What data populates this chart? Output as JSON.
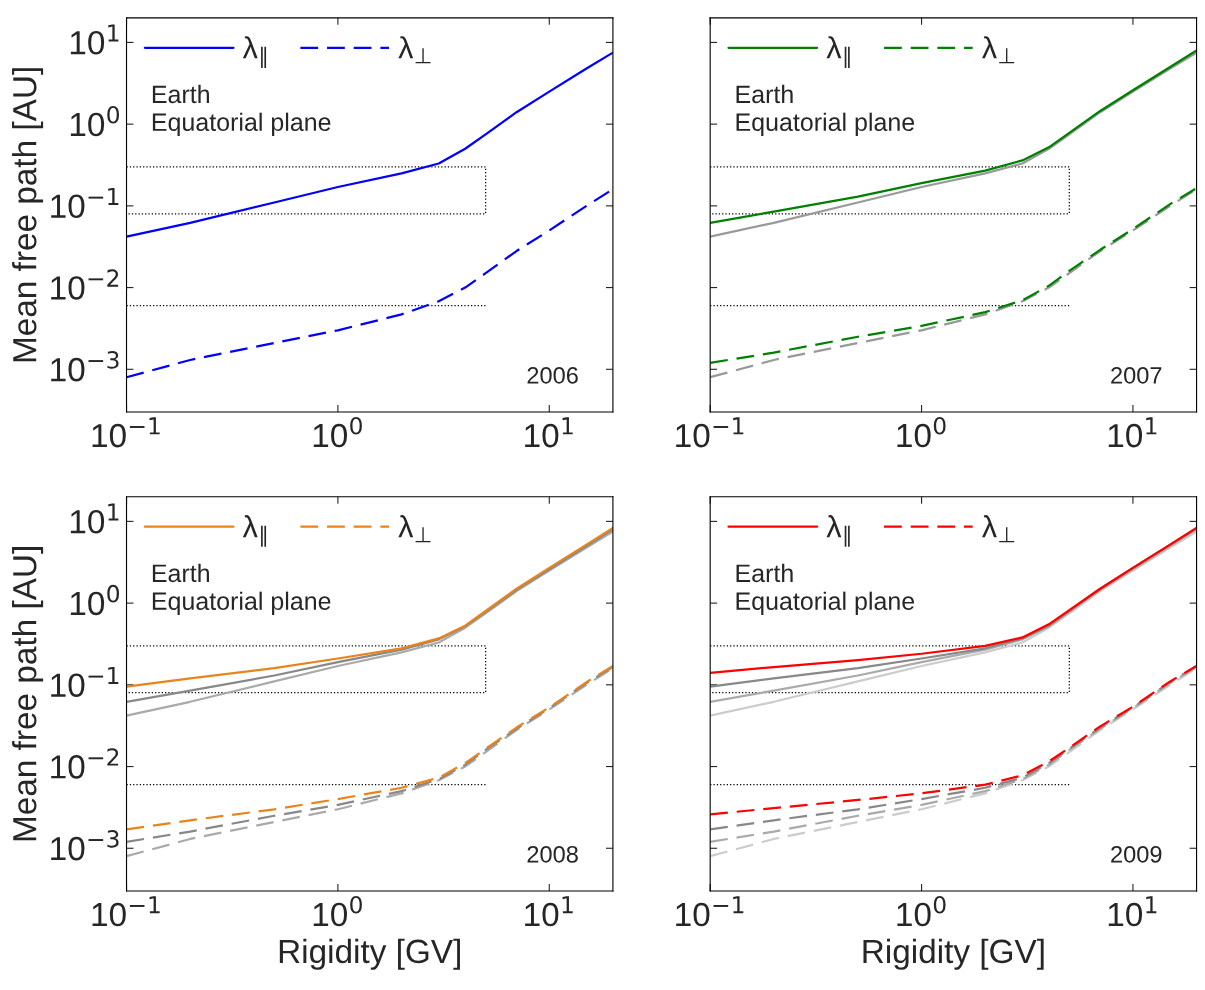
{
  "chart_data": [
    {
      "type": "line",
      "ylabel": "Mean free path [AU]",
      "xlim": [
        0.1,
        20
      ],
      "ylim": [
        0.0003,
        20
      ],
      "log": "xy",
      "grid": false,
      "legend": "top left",
      "xticks": [
        {
          "value": 0.1,
          "label": "10$^{−1}$"
        },
        {
          "value": 1,
          "label": "10$^{0}$"
        },
        {
          "value": 10,
          "label": "10$^{1}$"
        }
      ],
      "yticks": [
        {
          "value": 0.001,
          "label": "10$^{−3}$"
        },
        {
          "value": 0.01,
          "label": "10$^{−2}$"
        },
        {
          "value": 0.1,
          "label": "10$^{−1}$"
        },
        {
          "value": 1,
          "label": "10$^{0}$"
        },
        {
          "value": 10,
          "label": "10$^{1}$"
        }
      ],
      "annotations": [
        "Earth\nEquatorial plane",
        "2006"
      ],
      "series": [
        {
          "type": "line",
          "color": "#000000",
          "line_style": "dotted",
          "x": [
            0.1,
            5,
            5,
            0.1
          ],
          "values": [
            0.3,
            0.3,
            0.08,
            0.08
          ]
        },
        {
          "type": "line",
          "color": "#000000",
          "line_style": "dotted",
          "x": [
            0.1,
            5
          ],
          "values": [
            0.006,
            0.006
          ]
        },
        {
          "type": "line",
          "name": "λ$_{∥}$",
          "color": "#0000ff",
          "line_style": "solid",
          "x": [
            0.1,
            0.2,
            0.5,
            1,
            2,
            3,
            4,
            5,
            7,
            10,
            15,
            20
          ],
          "values": [
            0.042,
            0.062,
            0.11,
            0.17,
            0.25,
            0.33,
            0.5,
            0.75,
            1.4,
            2.5,
            4.8,
            7.5
          ]
        },
        {
          "type": "line",
          "name": "λ$_{⊥}$",
          "color": "#0000ff",
          "line_style": "dashed",
          "x": [
            0.1,
            0.2,
            0.5,
            1,
            2,
            3,
            4,
            5,
            7,
            10,
            15,
            20
          ],
          "values": [
            0.0008,
            0.0013,
            0.0021,
            0.003,
            0.0047,
            0.0068,
            0.01,
            0.015,
            0.028,
            0.05,
            0.1,
            0.16
          ]
        }
      ]
    },
    {
      "type": "line",
      "xlim": [
        0.1,
        20
      ],
      "ylim": [
        0.0003,
        20
      ],
      "log": "xy",
      "grid": false,
      "legend": "top left",
      "tick_labels": "x",
      "xticks": [
        {
          "value": 0.1,
          "label": "10$^{−1}$"
        },
        {
          "value": 1,
          "label": "10$^{0}$"
        },
        {
          "value": 10,
          "label": "10$^{1}$"
        }
      ],
      "yticks": [
        {
          "value": 0.001,
          "label": null
        },
        {
          "value": 0.01,
          "label": null
        },
        {
          "value": 0.1,
          "label": null
        },
        {
          "value": 1,
          "label": null
        },
        {
          "value": 10,
          "label": null
        }
      ],
      "annotations": [
        "Earth\nEquatorial plane",
        "2007"
      ],
      "series": [
        {
          "type": "line",
          "color": "#000000",
          "line_style": "dotted",
          "x": [
            0.1,
            5,
            5,
            0.1
          ],
          "values": [
            0.3,
            0.3,
            0.08,
            0.08
          ]
        },
        {
          "type": "line",
          "color": "#000000",
          "line_style": "dotted",
          "x": [
            0.1,
            5
          ],
          "values": [
            0.006,
            0.006
          ]
        },
        {
          "type": "line",
          "color": "#999999",
          "line_style": "solid",
          "x": [
            0.1,
            0.2,
            0.5,
            1,
            2,
            3,
            4,
            5,
            7,
            10,
            15,
            20
          ],
          "values": [
            0.042,
            0.062,
            0.11,
            0.17,
            0.25,
            0.33,
            0.5,
            0.75,
            1.4,
            2.5,
            4.8,
            7.5
          ]
        },
        {
          "type": "line",
          "color": "#999999",
          "line_style": "dashed",
          "x": [
            0.1,
            0.2,
            0.5,
            1,
            2,
            3,
            4,
            5,
            7,
            10,
            15,
            20
          ],
          "values": [
            0.0008,
            0.0013,
            0.0021,
            0.003,
            0.0047,
            0.0068,
            0.01,
            0.015,
            0.028,
            0.05,
            0.1,
            0.16
          ]
        },
        {
          "type": "line",
          "name": "λ$_{∥}$",
          "color": "#008000",
          "line_style": "solid",
          "x": [
            0.1,
            0.2,
            0.5,
            1,
            2,
            3,
            4,
            5,
            7,
            10,
            15,
            20
          ],
          "values": [
            0.062,
            0.085,
            0.13,
            0.19,
            0.27,
            0.36,
            0.52,
            0.78,
            1.45,
            2.6,
            5,
            8
          ]
        },
        {
          "type": "line",
          "name": "λ$_{⊥}$",
          "color": "#008000",
          "line_style": "dashed",
          "x": [
            0.1,
            0.2,
            0.5,
            1,
            2,
            3,
            4,
            5,
            7,
            10,
            15,
            20
          ],
          "values": [
            0.0012,
            0.0016,
            0.0025,
            0.0034,
            0.005,
            0.007,
            0.0105,
            0.016,
            0.029,
            0.052,
            0.105,
            0.165
          ]
        }
      ]
    },
    {
      "type": "line",
      "xlabel": "Rigidity [GV]",
      "ylabel": "Mean free path [AU]",
      "xlim": [
        0.1,
        20
      ],
      "ylim": [
        0.0003,
        20
      ],
      "log": "xy",
      "grid": false,
      "legend": "top left",
      "xticks": [
        {
          "value": 0.1,
          "label": "10$^{−1}$"
        },
        {
          "value": 1,
          "label": "10$^{0}$"
        },
        {
          "value": 10,
          "label": "10$^{1}$"
        }
      ],
      "yticks": [
        {
          "value": 0.001,
          "label": "10$^{−3}$"
        },
        {
          "value": 0.01,
          "label": "10$^{−2}$"
        },
        {
          "value": 0.1,
          "label": "10$^{−1}$"
        },
        {
          "value": 1,
          "label": "10$^{0}$"
        },
        {
          "value": 10,
          "label": "10$^{1}$"
        }
      ],
      "annotations": [
        "Earth\nEquatorial plane",
        "2008"
      ],
      "series": [
        {
          "type": "line",
          "color": "#000000",
          "line_style": "dotted",
          "x": [
            0.1,
            5,
            5,
            0.1
          ],
          "values": [
            0.3,
            0.3,
            0.08,
            0.08
          ]
        },
        {
          "type": "line",
          "color": "#000000",
          "line_style": "dotted",
          "x": [
            0.1,
            5
          ],
          "values": [
            0.006,
            0.006
          ]
        },
        {
          "type": "line",
          "color": "#aaaaaa",
          "line_style": "solid",
          "x": [
            0.1,
            0.2,
            0.5,
            1,
            2,
            3,
            4,
            5,
            7,
            10,
            15,
            20
          ],
          "values": [
            0.042,
            0.062,
            0.11,
            0.17,
            0.25,
            0.33,
            0.5,
            0.75,
            1.4,
            2.5,
            4.8,
            7.5
          ]
        },
        {
          "type": "line",
          "color": "#aaaaaa",
          "line_style": "dashed",
          "x": [
            0.1,
            0.2,
            0.5,
            1,
            2,
            3,
            4,
            5,
            7,
            10,
            15,
            20
          ],
          "values": [
            0.0008,
            0.0013,
            0.0021,
            0.003,
            0.0047,
            0.0068,
            0.01,
            0.015,
            0.028,
            0.05,
            0.1,
            0.16
          ]
        },
        {
          "type": "line",
          "color": "#888888",
          "line_style": "solid",
          "x": [
            0.1,
            0.2,
            0.5,
            1,
            2,
            3,
            4,
            5,
            7,
            10,
            15,
            20
          ],
          "values": [
            0.062,
            0.085,
            0.13,
            0.19,
            0.27,
            0.36,
            0.52,
            0.78,
            1.45,
            2.6,
            5,
            8
          ]
        },
        {
          "type": "line",
          "color": "#888888",
          "line_style": "dashed",
          "x": [
            0.1,
            0.2,
            0.5,
            1,
            2,
            3,
            4,
            5,
            7,
            10,
            15,
            20
          ],
          "values": [
            0.0012,
            0.0016,
            0.0025,
            0.0034,
            0.005,
            0.007,
            0.0105,
            0.016,
            0.029,
            0.052,
            0.105,
            0.165
          ]
        },
        {
          "type": "line",
          "name": "λ$_{∥}$",
          "color": "#e8841a",
          "line_style": "solid",
          "x": [
            0.1,
            0.2,
            0.5,
            1,
            2,
            3,
            4,
            5,
            7,
            10,
            15,
            20
          ],
          "values": [
            0.095,
            0.12,
            0.16,
            0.21,
            0.28,
            0.37,
            0.53,
            0.8,
            1.5,
            2.7,
            5.2,
            8.3
          ]
        },
        {
          "type": "line",
          "name": "λ$_{⊥}$",
          "color": "#e8841a",
          "line_style": "dashed",
          "x": [
            0.1,
            0.2,
            0.5,
            1,
            2,
            3,
            4,
            5,
            7,
            10,
            15,
            20
          ],
          "values": [
            0.0017,
            0.0022,
            0.003,
            0.004,
            0.0055,
            0.0073,
            0.011,
            0.0165,
            0.03,
            0.053,
            0.108,
            0.17
          ]
        }
      ]
    },
    {
      "type": "line",
      "xlabel": "Rigidity [GV]",
      "xlim": [
        0.1,
        20
      ],
      "ylim": [
        0.0003,
        20
      ],
      "log": "xy",
      "grid": false,
      "legend": "top left",
      "tick_labels": "x",
      "xticks": [
        {
          "value": 0.1,
          "label": "10$^{−1}$"
        },
        {
          "value": 1,
          "label": "10$^{0}$"
        },
        {
          "value": 10,
          "label": "10$^{1}$"
        }
      ],
      "yticks": [
        {
          "value": 0.001,
          "label": null
        },
        {
          "value": 0.01,
          "label": null
        },
        {
          "value": 0.1,
          "label": null
        },
        {
          "value": 1,
          "label": null
        },
        {
          "value": 10,
          "label": null
        }
      ],
      "annotations": [
        "Earth\nEquatorial plane",
        "2009"
      ],
      "series": [
        {
          "type": "line",
          "color": "#000000",
          "line_style": "dotted",
          "x": [
            0.1,
            5,
            5,
            0.1
          ],
          "values": [
            0.3,
            0.3,
            0.08,
            0.08
          ]
        },
        {
          "type": "line",
          "color": "#000000",
          "line_style": "dotted",
          "x": [
            0.1,
            5
          ],
          "values": [
            0.006,
            0.006
          ]
        },
        {
          "type": "line",
          "color": "#cccccc",
          "line_style": "solid",
          "x": [
            0.1,
            0.2,
            0.5,
            1,
            2,
            3,
            4,
            5,
            7,
            10,
            15,
            20
          ],
          "values": [
            0.042,
            0.062,
            0.11,
            0.17,
            0.25,
            0.33,
            0.5,
            0.75,
            1.4,
            2.5,
            4.8,
            7.5
          ]
        },
        {
          "type": "line",
          "color": "#cccccc",
          "line_style": "dashed",
          "x": [
            0.1,
            0.2,
            0.5,
            1,
            2,
            3,
            4,
            5,
            7,
            10,
            15,
            20
          ],
          "values": [
            0.0008,
            0.0013,
            0.0021,
            0.003,
            0.0047,
            0.0068,
            0.01,
            0.015,
            0.028,
            0.05,
            0.1,
            0.16
          ]
        },
        {
          "type": "line",
          "color": "#aaaaaa",
          "line_style": "solid",
          "x": [
            0.1,
            0.2,
            0.5,
            1,
            2,
            3,
            4,
            5,
            7,
            10,
            15,
            20
          ],
          "values": [
            0.062,
            0.085,
            0.13,
            0.19,
            0.27,
            0.36,
            0.52,
            0.78,
            1.45,
            2.6,
            5,
            8
          ]
        },
        {
          "type": "line",
          "color": "#aaaaaa",
          "line_style": "dashed",
          "x": [
            0.1,
            0.2,
            0.5,
            1,
            2,
            3,
            4,
            5,
            7,
            10,
            15,
            20
          ],
          "values": [
            0.0012,
            0.0016,
            0.0025,
            0.0034,
            0.005,
            0.007,
            0.0105,
            0.016,
            0.029,
            0.052,
            0.105,
            0.165
          ]
        },
        {
          "type": "line",
          "color": "#888888",
          "line_style": "solid",
          "x": [
            0.1,
            0.2,
            0.5,
            1,
            2,
            3,
            4,
            5,
            7,
            10,
            15,
            20
          ],
          "values": [
            0.095,
            0.12,
            0.16,
            0.21,
            0.28,
            0.37,
            0.53,
            0.8,
            1.5,
            2.7,
            5.2,
            8.3
          ]
        },
        {
          "type": "line",
          "color": "#888888",
          "line_style": "dashed",
          "x": [
            0.1,
            0.2,
            0.5,
            1,
            2,
            3,
            4,
            5,
            7,
            10,
            15,
            20
          ],
          "values": [
            0.0017,
            0.0022,
            0.003,
            0.004,
            0.0055,
            0.0073,
            0.011,
            0.0165,
            0.03,
            0.053,
            0.108,
            0.17
          ]
        },
        {
          "type": "line",
          "name": "λ$_{∥}$",
          "color": "#ff0000",
          "line_style": "solid",
          "x": [
            0.1,
            0.2,
            0.5,
            1,
            2,
            3,
            4,
            5,
            7,
            10,
            15,
            20
          ],
          "values": [
            0.14,
            0.165,
            0.2,
            0.24,
            0.3,
            0.38,
            0.55,
            0.82,
            1.5,
            2.7,
            5.2,
            8.3
          ]
        },
        {
          "type": "line",
          "name": "λ$_{⊥}$",
          "color": "#ff0000",
          "line_style": "dashed",
          "x": [
            0.1,
            0.2,
            0.5,
            1,
            2,
            3,
            4,
            5,
            7,
            10,
            15,
            20
          ],
          "values": [
            0.0026,
            0.0031,
            0.0039,
            0.0047,
            0.006,
            0.0078,
            0.0115,
            0.017,
            0.031,
            0.054,
            0.11,
            0.17
          ]
        }
      ]
    }
  ]
}
